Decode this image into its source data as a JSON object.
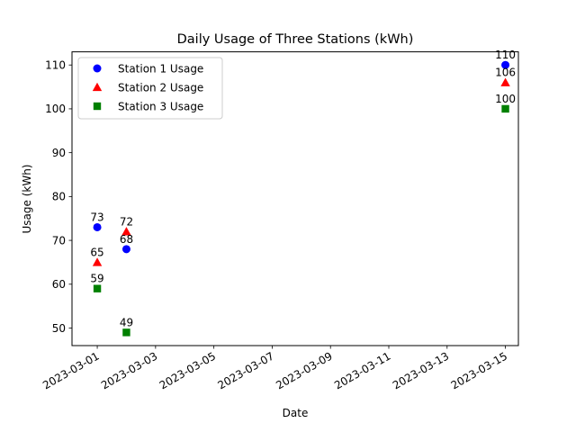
{
  "chart_data": {
    "type": "scatter",
    "title": "Daily Usage of Three Stations (kWh)",
    "xlabel": "Date",
    "ylabel": "Usage (kWh)",
    "x_axis_type": "date",
    "xlim": [
      "2023-02-28",
      "2023-03-15"
    ],
    "ylim": [
      46,
      113
    ],
    "x_ticks": [
      "2023-03-01",
      "2023-03-03",
      "2023-03-05",
      "2023-03-07",
      "2023-03-09",
      "2023-03-11",
      "2023-03-13",
      "2023-03-15"
    ],
    "y_ticks": [
      50,
      60,
      70,
      80,
      90,
      100,
      110
    ],
    "grid": false,
    "legend_position": "top-left",
    "x": [
      "2023-03-01",
      "2023-03-02",
      "2023-03-15"
    ],
    "series": [
      {
        "name": "Station 1 Usage",
        "values": [
          73,
          68,
          110
        ],
        "color": "#0000ff",
        "marker": "circle"
      },
      {
        "name": "Station 2 Usage",
        "values": [
          65,
          72,
          106
        ],
        "color": "#ff0000",
        "marker": "triangle"
      },
      {
        "name": "Station 3 Usage",
        "values": [
          59,
          49,
          100
        ],
        "color": "#008000",
        "marker": "square"
      }
    ]
  }
}
